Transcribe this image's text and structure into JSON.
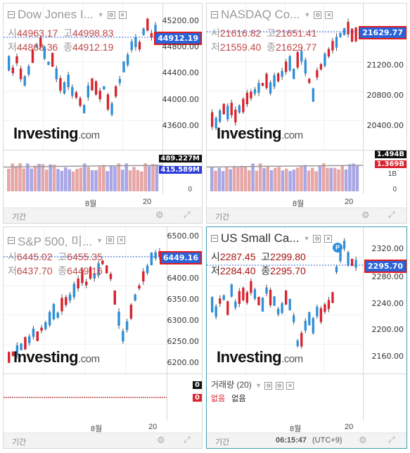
{
  "panels": [
    {
      "title": "Dow Jones I...",
      "o_lbl": "시",
      "o": "44963.17",
      "h_lbl": "고",
      "h": "44998.83",
      "l_lbl": "저",
      "l": "44868.36",
      "c_lbl": "종",
      "c": "44912.19",
      "last": "44912.19",
      "ticks": [
        "45200.00",
        "44800.00",
        "44400.00",
        "44000.00",
        "43600.00"
      ],
      "vol_badges": [
        "489.227M",
        "415.589M"
      ],
      "vol_ticks": [
        "0"
      ],
      "month": "8월",
      "day": "20",
      "footer_label": "기간"
    },
    {
      "title": "NASDAQ Co...",
      "o_lbl": "시",
      "o": "21616.82",
      "h_lbl": "고",
      "h": "21651.41",
      "l_lbl": "저",
      "l": "21559.40",
      "c_lbl": "종",
      "c": "21629.77",
      "last": "21629.77",
      "ticks": [
        "21200.00",
        "20800.00",
        "20400.00"
      ],
      "vol_badges": [
        "1.494B",
        "1.369B"
      ],
      "vol_ticks": [
        "1B",
        "0"
      ],
      "month": "8월",
      "day": "20",
      "footer_label": "기간"
    },
    {
      "title": "S&P 500, 미...",
      "o_lbl": "시",
      "o": "6445.02",
      "h_lbl": "고",
      "h": "6455.35",
      "l_lbl": "저",
      "l": "6437.70",
      "c_lbl": "종",
      "c": "6449.16",
      "last": "6449.16",
      "ticks": [
        "6500.00",
        "6450.00",
        "6400.00",
        "6350.00",
        "6300.00",
        "6250.00",
        "6200.00"
      ],
      "vol_badges": [
        "0",
        "0"
      ],
      "vol_ticks": [],
      "month": "8월",
      "day": "20",
      "footer_label": "기간"
    },
    {
      "title": "US Small Ca...",
      "o_lbl": "시",
      "o": "2287.45",
      "h_lbl": "고",
      "h": "2299.80",
      "l_lbl": "저",
      "l": "2284.40",
      "c_lbl": "종",
      "c": "2295.70",
      "last": "2295.70",
      "ticks": [
        "2320.00",
        "2280.00",
        "2240.00",
        "2200.00",
        "2160.00"
      ],
      "vol_header": "거래량 (20)",
      "vol_none_1": "없음",
      "vol_none_2": "없음",
      "month": "8월",
      "day": "20",
      "footer_label": "기간",
      "clock": "06:15:47",
      "tz": "(UTC+9)"
    }
  ],
  "watermark": {
    "brand": "Investing",
    "suffix": ".com"
  },
  "p_badge": "P",
  "colors": {
    "up": "#2f8fd8",
    "down": "#d9232d",
    "vol_up": "#a9a6e6",
    "vol_down": "#e6a6a6"
  }
}
